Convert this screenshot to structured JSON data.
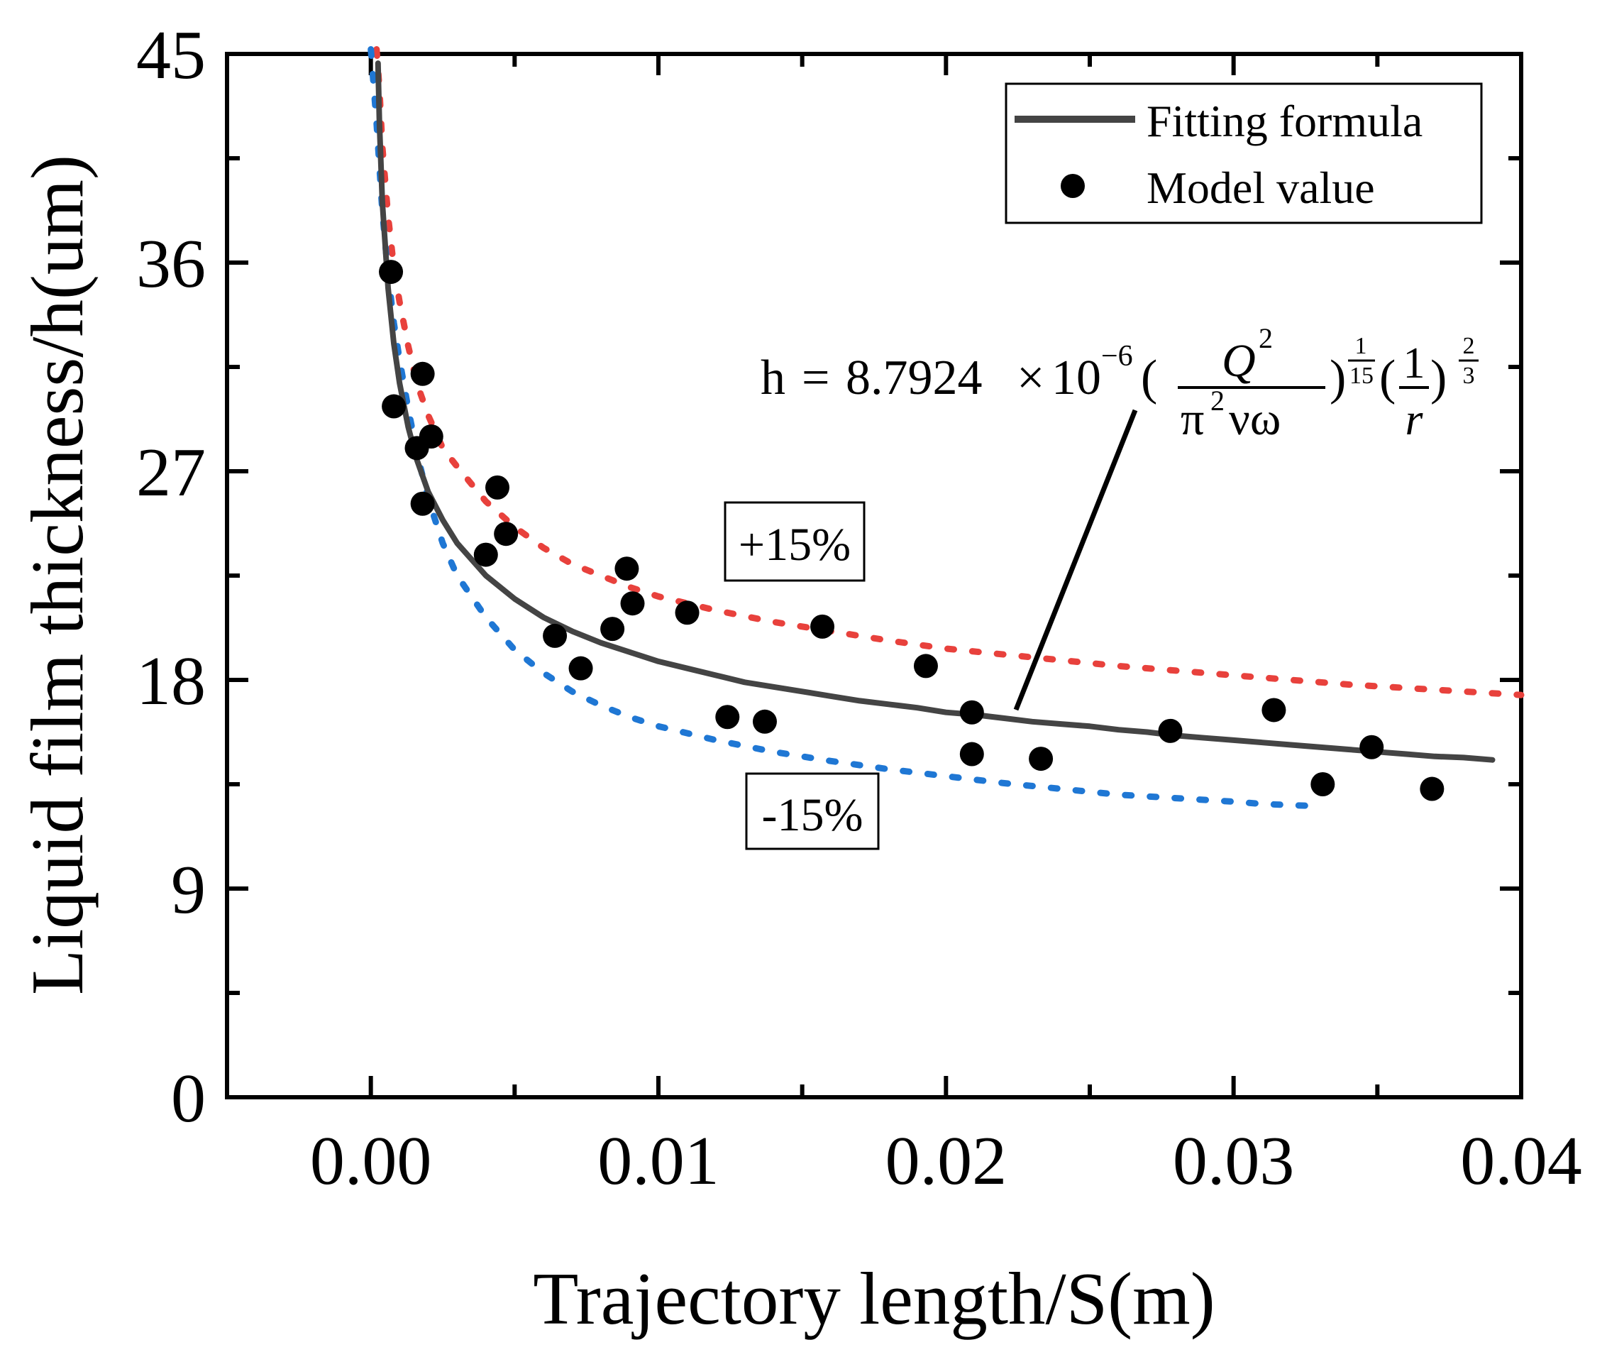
{
  "chart_data": {
    "type": "scatter",
    "xlabel": "Trajectory length/S(m)",
    "ylabel": "Liquid film thickness/h(um)",
    "xlim": [
      -0.005,
      0.04
    ],
    "ylim": [
      0,
      45
    ],
    "x_ticks": [
      0.0,
      0.01,
      0.02,
      0.03,
      0.04
    ],
    "x_tick_labels": [
      "0.00",
      "0.01",
      "0.02",
      "0.03",
      "0.04"
    ],
    "y_ticks": [
      0,
      9,
      18,
      27,
      36,
      45
    ],
    "y_tick_labels": [
      "0",
      "9",
      "18",
      "27",
      "36",
      "45"
    ],
    "grid": false,
    "legend": {
      "position": "top-right",
      "entries": [
        {
          "label": "Fitting formula",
          "type": "line",
          "color": "#444444"
        },
        {
          "label": "Model value",
          "type": "marker",
          "color": "#000000"
        }
      ]
    },
    "series": [
      {
        "name": "Fitting formula",
        "type": "line",
        "color": "#444444",
        "x": [
          0.00025,
          0.0003,
          0.0004,
          0.0006,
          0.0008,
          0.001,
          0.0013,
          0.0016,
          0.002,
          0.0025,
          0.003,
          0.004,
          0.005,
          0.006,
          0.007,
          0.008,
          0.009,
          0.01,
          0.011,
          0.012,
          0.013,
          0.014,
          0.015,
          0.016,
          0.017,
          0.018,
          0.019,
          0.02,
          0.021,
          0.022,
          0.023,
          0.024,
          0.025,
          0.026,
          0.027,
          0.028,
          0.029,
          0.03,
          0.031,
          0.032,
          0.033,
          0.034,
          0.035,
          0.036,
          0.037,
          0.038,
          0.039
        ],
        "values": [
          44.6,
          42.0,
          38.6,
          34.9,
          32.5,
          30.8,
          28.9,
          27.5,
          26.1,
          24.9,
          23.9,
          22.5,
          21.5,
          20.7,
          20.1,
          19.6,
          19.2,
          18.8,
          18.5,
          18.2,
          17.9,
          17.7,
          17.5,
          17.3,
          17.1,
          16.95,
          16.8,
          16.6,
          16.5,
          16.35,
          16.2,
          16.1,
          16.0,
          15.85,
          15.75,
          15.6,
          15.5,
          15.4,
          15.3,
          15.2,
          15.1,
          15.0,
          14.9,
          14.8,
          14.7,
          14.65,
          14.55
        ]
      },
      {
        "name": "+15%",
        "type": "dotted-line",
        "color": "#e8413c",
        "x": [
          0.0002,
          0.0003,
          0.0004,
          0.0006,
          0.0008,
          0.001,
          0.0013,
          0.0016,
          0.002,
          0.0025,
          0.003,
          0.004,
          0.005,
          0.006,
          0.007,
          0.008,
          0.009,
          0.01,
          0.012,
          0.014,
          0.016,
          0.018,
          0.02,
          0.022,
          0.024,
          0.026,
          0.028,
          0.03,
          0.032,
          0.034,
          0.036,
          0.038,
          0.04
        ],
        "values": [
          45.2,
          43.5,
          41.0,
          38.0,
          35.8,
          34.3,
          32.4,
          30.8,
          29.4,
          28.0,
          27.2,
          25.7,
          24.6,
          23.7,
          23.0,
          22.5,
          22.0,
          21.6,
          21.0,
          20.5,
          20.1,
          19.7,
          19.35,
          19.1,
          18.85,
          18.6,
          18.4,
          18.2,
          18.0,
          17.8,
          17.65,
          17.5,
          17.35
        ]
      },
      {
        "name": "-15%",
        "type": "dotted-line",
        "color": "#1f77d4",
        "x": [
          0.0,
          0.0002,
          0.0004,
          0.0006,
          0.0008,
          0.001,
          0.0013,
          0.0016,
          0.002,
          0.0025,
          0.003,
          0.004,
          0.005,
          0.006,
          0.007,
          0.008,
          0.009,
          0.01,
          0.012,
          0.014,
          0.016,
          0.018,
          0.02,
          0.022,
          0.024,
          0.026,
          0.028,
          0.03,
          0.031,
          0.032,
          0.033
        ],
        "values": [
          45.2,
          42.0,
          38.2,
          35.5,
          33.4,
          31.8,
          29.7,
          27.8,
          25.8,
          23.9,
          22.5,
          20.7,
          19.3,
          18.3,
          17.5,
          16.9,
          16.4,
          16.0,
          15.4,
          14.9,
          14.5,
          14.15,
          13.85,
          13.55,
          13.3,
          13.05,
          12.9,
          12.75,
          12.65,
          12.6,
          12.55
        ]
      },
      {
        "name": "Model value",
        "type": "scatter",
        "color": "#000000",
        "x": [
          0.0007,
          0.0008,
          0.0016,
          0.0018,
          0.0018,
          0.0021,
          0.004,
          0.0044,
          0.0047,
          0.0064,
          0.0073,
          0.0084,
          0.0089,
          0.0091,
          0.011,
          0.0124,
          0.0137,
          0.0157,
          0.0193,
          0.0209,
          0.0209,
          0.0233,
          0.0278,
          0.0314,
          0.0331,
          0.0348,
          0.0369
        ],
        "values": [
          35.6,
          29.8,
          28.0,
          31.2,
          25.6,
          28.5,
          23.4,
          26.3,
          24.3,
          19.9,
          18.5,
          20.2,
          22.8,
          21.3,
          20.9,
          16.4,
          16.2,
          20.3,
          18.6,
          16.6,
          14.8,
          14.6,
          15.8,
          16.7,
          13.5,
          15.1,
          13.3
        ]
      }
    ],
    "annotations": [
      {
        "text": "+15%",
        "boxed": true,
        "position": "above upper band, middle"
      },
      {
        "text": "-15%",
        "boxed": true,
        "position": "below lower band, middle"
      },
      {
        "text": "h = 8.7924×10⁻⁶(Q²/(π²νω))^(1/15)(1/r)^(2/3)",
        "position": "upper right, arrow pointing to fitting curve"
      }
    ],
    "formula": {
      "h": "h",
      "eq": "=",
      "coef": "8.7924",
      "times": "×",
      "ten": "10",
      "exp": "−6",
      "lp": "(",
      "rp": ")",
      "numerator": "Q",
      "num_sup": "2",
      "denominator_pi": "π",
      "den_sup": "2",
      "denominator_rest": "νω",
      "pow1_num": "1",
      "pow1_den": "15",
      "frac2_num": "1",
      "frac2_den": "r",
      "pow2_num": "2",
      "pow2_den": "3"
    }
  }
}
